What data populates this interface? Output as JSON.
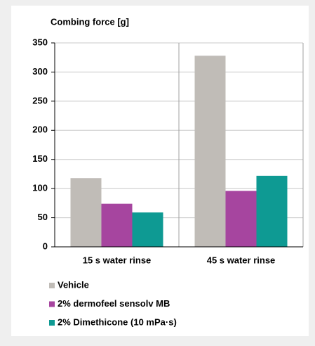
{
  "chart_data": {
    "type": "bar",
    "title": "Combing force [g]",
    "categories": [
      "15 s water rinse",
      "45 s water rinse"
    ],
    "series": [
      {
        "name": "Vehicle",
        "color": "#c0bcb7",
        "values": [
          118,
          328
        ]
      },
      {
        "name": "2% dermofeel sensolv MB",
        "color": "#a6459f",
        "values": [
          74,
          96
        ]
      },
      {
        "name": "2% Dimethicone (10 mPa·s)",
        "color": "#0e9a93",
        "values": [
          59,
          122
        ]
      }
    ],
    "ylim": [
      0,
      350
    ],
    "yticks": [
      0,
      50,
      100,
      150,
      200,
      250,
      300,
      350
    ],
    "grid": true
  }
}
